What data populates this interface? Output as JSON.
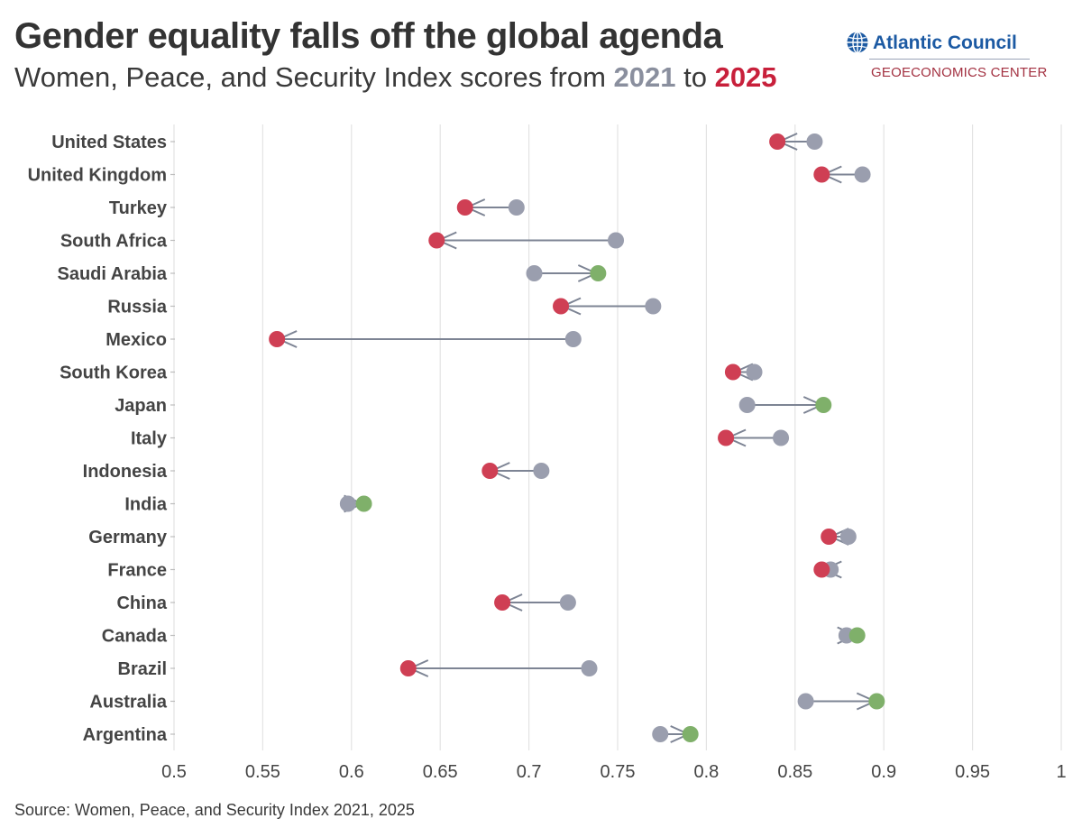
{
  "header": {
    "title": "Gender equality falls off the global agenda",
    "subtitle_prefix": "Women, Peace, and Security Index scores from ",
    "subtitle_year1": "2021",
    "subtitle_mid": " to ",
    "subtitle_year2": "2025"
  },
  "logo": {
    "name": "Atlantic Council",
    "sub": "GEOECONOMICS CENTER",
    "icon": "globe-icon"
  },
  "source": "Source: Women, Peace, and Security Index 2021, 2025",
  "colors": {
    "score_2021": "#9a9eae",
    "decline_2025": "#cf3f54",
    "increase_2025": "#7fb06a",
    "arrow": "#7d8494",
    "grid": "#e3e3e3",
    "brand_blue": "#1c5aa3",
    "brand_red": "#a33141"
  },
  "chart_data": {
    "type": "dumbbell",
    "xlim": [
      0.5,
      1
    ],
    "x_ticks": [
      "0.5",
      "0.55",
      "0.6",
      "0.65",
      "0.7",
      "0.75",
      "0.8",
      "0.85",
      "0.9",
      "0.95",
      "1"
    ],
    "grid": true,
    "series": [
      {
        "name": "2021"
      },
      {
        "name": "2025"
      }
    ],
    "countries": [
      {
        "name": "United States",
        "v2021": 0.861,
        "v2025": 0.84
      },
      {
        "name": "United Kingdom",
        "v2021": 0.888,
        "v2025": 0.865
      },
      {
        "name": "Turkey",
        "v2021": 0.693,
        "v2025": 0.664
      },
      {
        "name": "South Africa",
        "v2021": 0.749,
        "v2025": 0.648
      },
      {
        "name": "Saudi Arabia",
        "v2021": 0.703,
        "v2025": 0.739
      },
      {
        "name": "Russia",
        "v2021": 0.77,
        "v2025": 0.718
      },
      {
        "name": "Mexico",
        "v2021": 0.725,
        "v2025": 0.558
      },
      {
        "name": "South Korea",
        "v2021": 0.827,
        "v2025": 0.815
      },
      {
        "name": "Japan",
        "v2021": 0.823,
        "v2025": 0.866
      },
      {
        "name": "Italy",
        "v2021": 0.842,
        "v2025": 0.811
      },
      {
        "name": "Indonesia",
        "v2021": 0.707,
        "v2025": 0.678
      },
      {
        "name": "India",
        "v2021": 0.598,
        "v2025": 0.607
      },
      {
        "name": "Germany",
        "v2021": 0.88,
        "v2025": 0.869
      },
      {
        "name": "France",
        "v2021": 0.87,
        "v2025": 0.865
      },
      {
        "name": "China",
        "v2021": 0.722,
        "v2025": 0.685
      },
      {
        "name": "Canada",
        "v2021": 0.879,
        "v2025": 0.885
      },
      {
        "name": "Brazil",
        "v2021": 0.734,
        "v2025": 0.632
      },
      {
        "name": "Australia",
        "v2021": 0.856,
        "v2025": 0.896
      },
      {
        "name": "Argentina",
        "v2021": 0.774,
        "v2025": 0.791
      }
    ]
  }
}
